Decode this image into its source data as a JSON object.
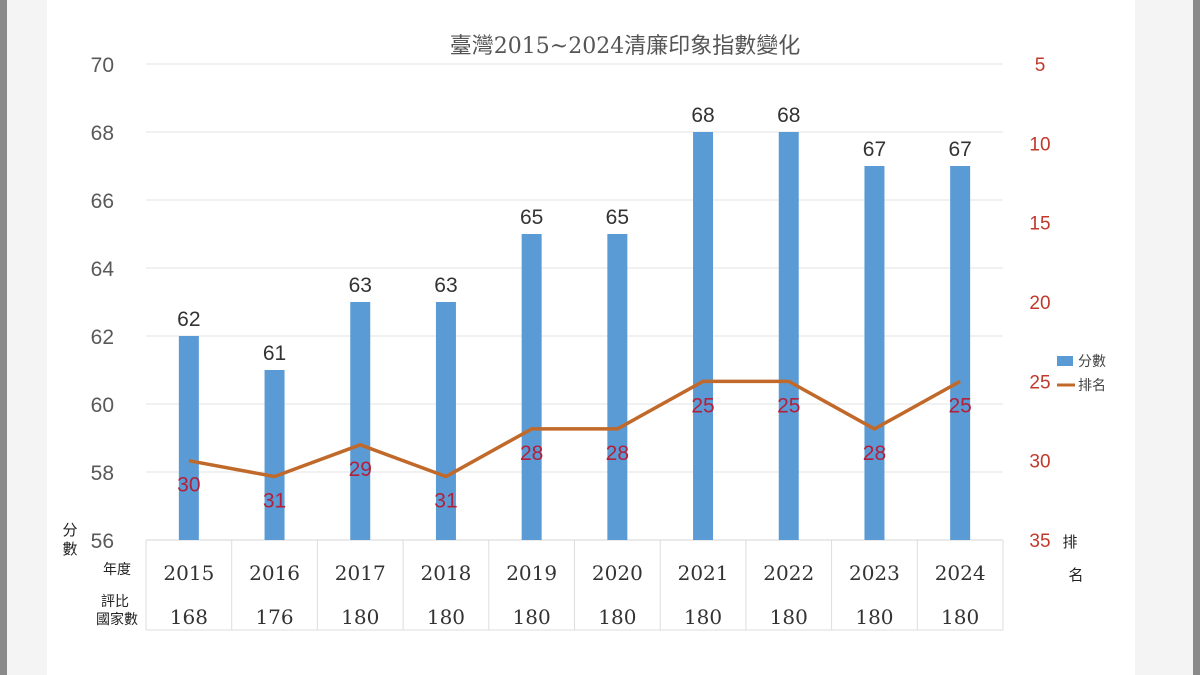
{
  "chart_data": {
    "type": "bar",
    "title": "臺灣2015~2024清廉印象指數變化",
    "categories": [
      "2015",
      "2016",
      "2017",
      "2018",
      "2019",
      "2020",
      "2021",
      "2022",
      "2023",
      "2024"
    ],
    "series": [
      {
        "name": "分數",
        "type": "bar",
        "axis": "left",
        "color": "#5b9bd5",
        "values": [
          62,
          61,
          63,
          63,
          65,
          65,
          68,
          68,
          67,
          67
        ]
      },
      {
        "name": "排名",
        "type": "line",
        "axis": "right",
        "color": "#c0692a",
        "values": [
          30,
          31,
          29,
          31,
          28,
          28,
          25,
          25,
          28,
          25
        ]
      }
    ],
    "table_row": {
      "label": "評比國家數",
      "values": [
        168,
        176,
        180,
        180,
        180,
        180,
        180,
        180,
        180,
        180
      ]
    },
    "ylabel": "分數",
    "y2label": "排名",
    "xlabel": "年度",
    "ylim": [
      56,
      70
    ],
    "y_ticks": [
      56,
      58,
      60,
      62,
      64,
      66,
      68,
      70
    ],
    "y2lim": [
      5,
      35
    ],
    "y2_reversed": true,
    "y2_ticks": [
      5,
      10,
      15,
      20,
      25,
      30,
      35
    ],
    "grid": true,
    "legend_position": "right"
  },
  "labels": {
    "x_row": "年度",
    "table_row_line1": "評比",
    "table_row_line2": "國家數",
    "y_left_1": "分",
    "y_left_2": "數",
    "y_right_1": "排",
    "y_right_2": "名"
  },
  "legend": {
    "bar": "分數",
    "line": "排名"
  }
}
